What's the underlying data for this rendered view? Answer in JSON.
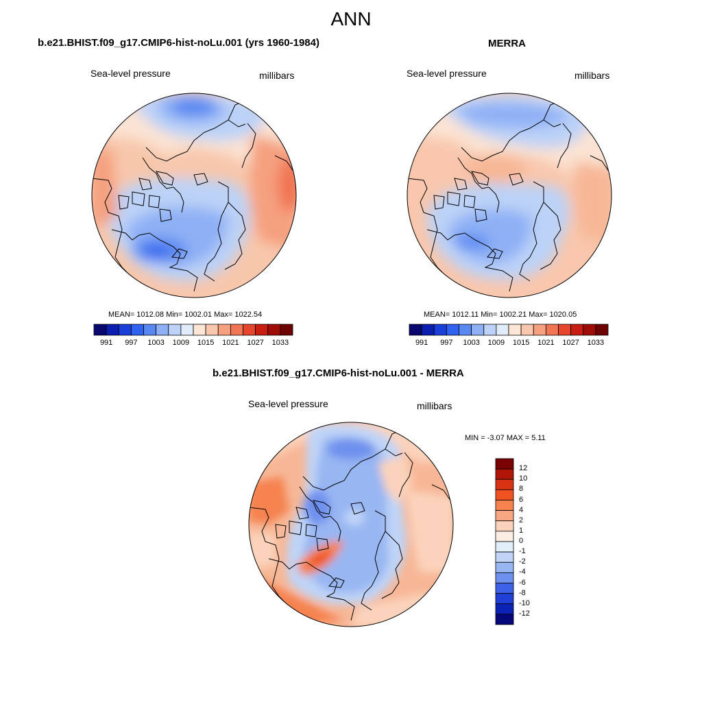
{
  "main_title": "ANN",
  "panels": [
    {
      "title": "b.e21.BHIST.f09_g17.CMIP6-hist-noLu.001 (yrs 1960-1984)",
      "variable": "Sea-level pressure",
      "units": "millibars",
      "stats": "MEAN= 1012.08  Min= 1002.01  Max= 1022.54"
    },
    {
      "title": "MERRA",
      "variable": "Sea-level pressure",
      "units": "millibars",
      "stats": "MEAN= 1012.11  Min= 1002.21  Max= 1020.05"
    },
    {
      "title": "b.e21.BHIST.f09_g17.CMIP6-hist-noLu.001 - MERRA",
      "variable": "Sea-level pressure",
      "units": "millibars",
      "stats": "MIN =  -3.07 MAX =   5.11"
    }
  ],
  "colorbar_abs": {
    "labels": [
      "991",
      "997",
      "1003",
      "1009",
      "1015",
      "1021",
      "1027",
      "1033"
    ],
    "colors": [
      "#08086e",
      "#0a1fb0",
      "#1a3fd8",
      "#2f62ee",
      "#5a88f2",
      "#8eb0f5",
      "#bcd2f7",
      "#e1ecfa",
      "#fce6d6",
      "#f9c7ad",
      "#f5a07f",
      "#f07553",
      "#e6472c",
      "#c81e12",
      "#9e0e06",
      "#6e0303"
    ]
  },
  "colorbar_diff": {
    "labels": [
      "12",
      "10",
      "8",
      "6",
      "4",
      "2",
      "1",
      "0",
      "-1",
      "-2",
      "-4",
      "-6",
      "-8",
      "-10",
      "-12"
    ],
    "colors": [
      "#7a0303",
      "#b01508",
      "#d83414",
      "#f05221",
      "#f5824f",
      "#f7a882",
      "#fbd3bc",
      "#fdeee3",
      "#e3eefb",
      "#bfd4f7",
      "#98b6f2",
      "#6e90ee",
      "#3d62e8",
      "#1f3fd6",
      "#0c22b4",
      "#06087a"
    ]
  }
}
